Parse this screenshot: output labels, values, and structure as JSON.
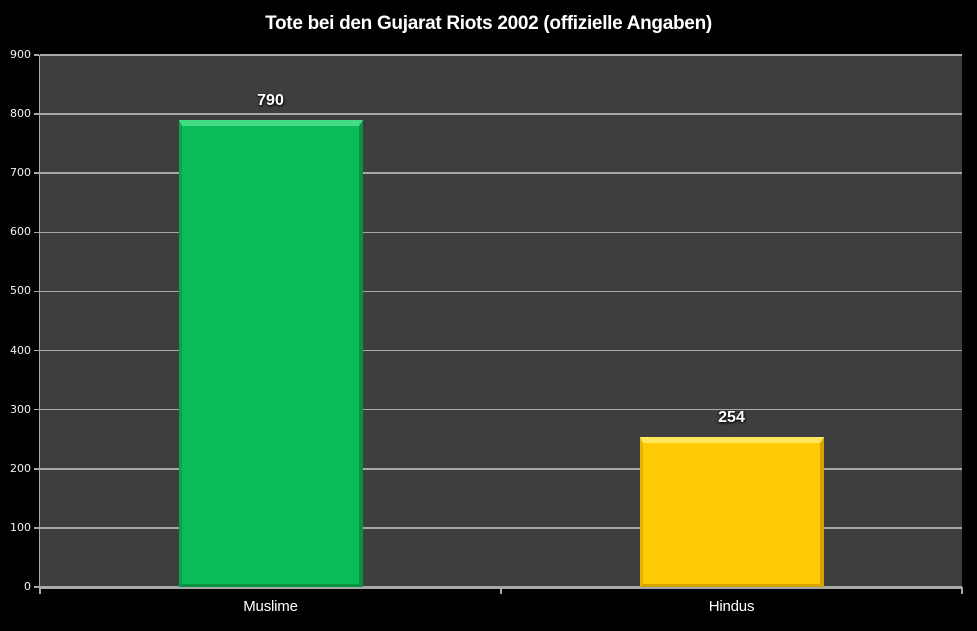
{
  "chart_data": {
    "type": "bar",
    "title": "Tote bei den Gujarat Riots 2002 (offizielle Angaben)",
    "categories": [
      "Muslime",
      "Hindus"
    ],
    "values": [
      790,
      254
    ],
    "value_labels": [
      "790",
      "254"
    ],
    "xlabel": "",
    "ylabel": "",
    "ylim": [
      0,
      900
    ],
    "yticks": [
      0,
      100,
      200,
      300,
      400,
      500,
      600,
      700,
      800,
      900
    ],
    "grid": true,
    "legend": "none",
    "bar_styles": [
      {
        "name": "muslime",
        "fill": "#0bbc56",
        "bevel_top": "#44dc85",
        "bevel_left": "#09a34b",
        "bevel_right": "#089245",
        "bevel_bottom": "#089245"
      },
      {
        "name": "hindus",
        "fill": "#ffca06",
        "bevel_top": "#ffe85c",
        "bevel_left": "#e6b600",
        "bevel_right": "#d3a300",
        "bevel_bottom": "#d3a300"
      }
    ],
    "colors": {
      "background": "#010101",
      "plot_background": "#3e3e3e",
      "gridline": "#a8a8a8",
      "axis": "#a8a8a8",
      "title_text": "#ffffff",
      "tick_text": "#f2f2f2",
      "value_label_text": "#ffffff",
      "category_label_text": "#ffffff"
    }
  }
}
